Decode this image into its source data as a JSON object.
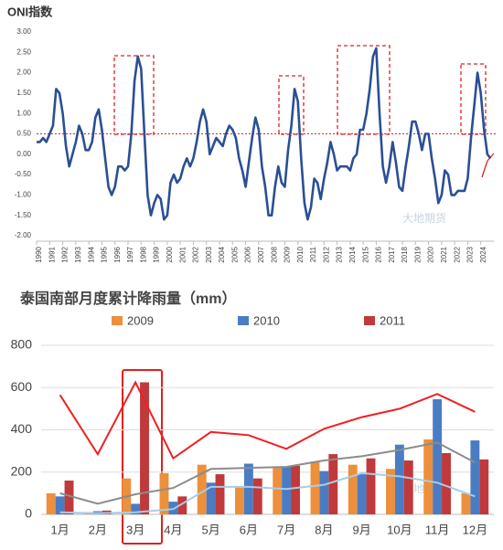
{
  "chart_data": [
    {
      "type": "line",
      "title": "ONI指数",
      "watermark": "大地期货",
      "x": [
        1990,
        1990.25,
        1990.5,
        1990.75,
        1991,
        1991.25,
        1991.5,
        1991.75,
        1992,
        1992.25,
        1992.5,
        1992.75,
        1993,
        1993.25,
        1993.5,
        1993.75,
        1994,
        1994.25,
        1994.5,
        1994.75,
        1995,
        1995.25,
        1995.5,
        1995.75,
        1996,
        1996.25,
        1996.5,
        1996.75,
        1997,
        1997.25,
        1997.5,
        1997.75,
        1998,
        1998.25,
        1998.5,
        1998.75,
        1999,
        1999.25,
        1999.5,
        1999.75,
        2000,
        2000.25,
        2000.5,
        2000.75,
        2001,
        2001.25,
        2001.5,
        2001.75,
        2002,
        2002.25,
        2002.5,
        2002.75,
        2003,
        2003.25,
        2003.5,
        2003.75,
        2004,
        2004.25,
        2004.5,
        2004.75,
        2005,
        2005.25,
        2005.5,
        2005.75,
        2006,
        2006.25,
        2006.5,
        2006.75,
        2007,
        2007.25,
        2007.5,
        2007.75,
        2008,
        2008.25,
        2008.5,
        2008.75,
        2009,
        2009.25,
        2009.5,
        2009.75,
        2010,
        2010.25,
        2010.5,
        2010.75,
        2011,
        2011.25,
        2011.5,
        2011.75,
        2012,
        2012.25,
        2012.5,
        2012.75,
        2013,
        2013.25,
        2013.5,
        2013.75,
        2014,
        2014.25,
        2014.5,
        2014.75,
        2015,
        2015.25,
        2015.5,
        2015.75,
        2016,
        2016.25,
        2016.5,
        2016.75,
        2017,
        2017.25,
        2017.5,
        2017.75,
        2018,
        2018.25,
        2018.5,
        2018.75,
        2019,
        2019.25,
        2019.5,
        2019.75,
        2020,
        2020.25,
        2020.5,
        2020.75,
        2021,
        2021.25,
        2021.5,
        2021.75,
        2022,
        2022.25,
        2022.5,
        2022.75,
        2023,
        2023.25,
        2023.5,
        2023.75,
        2024,
        2024.25,
        2024.5,
        2024.75
      ],
      "series": [
        {
          "color": "#2b4f95",
          "values": [
            0.3,
            0.3,
            0.4,
            0.3,
            0.5,
            0.7,
            1.6,
            1.5,
            1.0,
            0.2,
            -0.3,
            0.0,
            0.3,
            0.7,
            0.5,
            0.1,
            0.1,
            0.3,
            0.9,
            1.1,
            0.6,
            -0.1,
            -0.8,
            -1.0,
            -0.8,
            -0.3,
            -0.3,
            -0.4,
            -0.3,
            0.5,
            1.8,
            2.4,
            2.1,
            0.5,
            -1.0,
            -1.5,
            -1.2,
            -1.0,
            -1.1,
            -1.6,
            -1.5,
            -0.7,
            -0.5,
            -0.7,
            -0.6,
            -0.3,
            -0.1,
            -0.3,
            -0.1,
            0.3,
            0.8,
            1.1,
            0.8,
            0.0,
            0.2,
            0.4,
            0.3,
            0.2,
            0.5,
            0.7,
            0.6,
            0.4,
            -0.1,
            -0.4,
            -0.8,
            -0.2,
            0.4,
            0.9,
            0.6,
            -0.3,
            -0.8,
            -1.5,
            -1.5,
            -0.8,
            -0.3,
            -0.7,
            -0.8,
            0.1,
            0.7,
            1.6,
            1.3,
            -0.1,
            -1.2,
            -1.6,
            -1.3,
            -0.6,
            -0.7,
            -1.1,
            -0.6,
            -0.2,
            0.3,
            0.0,
            -0.4,
            -0.3,
            -0.3,
            -0.3,
            -0.4,
            -0.1,
            0.0,
            0.6,
            0.6,
            1.0,
            1.6,
            2.4,
            2.6,
            1.0,
            -0.3,
            -0.7,
            -0.3,
            0.3,
            -0.2,
            -0.8,
            -0.9,
            -0.3,
            0.2,
            0.8,
            0.8,
            0.5,
            0.1,
            0.5,
            0.5,
            -0.1,
            -0.6,
            -1.2,
            -1.0,
            -0.4,
            -0.5,
            -1.0,
            -1.0,
            -0.9,
            -0.9,
            -0.9,
            -0.6,
            0.4,
            1.2,
            2.0,
            1.5,
            0.6,
            0.0,
            -0.1
          ]
        }
      ],
      "threshold": 0.5,
      "threshold_color": "#e02020",
      "xlim": [
        1990,
        2025
      ],
      "xticks": [
        1990,
        1991,
        1992,
        1993,
        1994,
        1995,
        1996,
        1997,
        1998,
        1999,
        2000,
        2001,
        2002,
        2003,
        2004,
        2005,
        2006,
        2007,
        2008,
        2009,
        2010,
        2011,
        2012,
        2013,
        2014,
        2015,
        2016,
        2017,
        2018,
        2019,
        2020,
        2021,
        2022,
        2023,
        2024
      ],
      "ylim": [
        -2,
        3
      ],
      "yticks": [
        {
          "value": 3,
          "label": "3.00"
        },
        {
          "value": 2.5,
          "label": "2.50"
        },
        {
          "value": 2,
          "label": "2.00"
        },
        {
          "value": 1.5,
          "label": "1.50"
        },
        {
          "value": 1,
          "label": "1.00"
        },
        {
          "value": 0.5,
          "label": "0.50"
        },
        {
          "value": 0,
          "label": "0.00"
        },
        {
          "value": -0.5,
          "label": "-0.50"
        },
        {
          "value": -1,
          "label": "-1.00"
        },
        {
          "value": -1.5,
          "label": "-1.50"
        },
        {
          "value": -2,
          "label": "-2.00"
        }
      ],
      "grid": false
    },
    {
      "type": "bar",
      "title": "泰国南部月度累计降雨量（mm）",
      "watermark": "大地期货",
      "categories": [
        "1月",
        "2月",
        "3月",
        "4月",
        "5月",
        "6月",
        "7月",
        "8月",
        "9月",
        "10月",
        "11月",
        "12月"
      ],
      "series": [
        {
          "name": "2009",
          "color": "#ed8f3b",
          "values": [
            100,
            10,
            170,
            195,
            235,
            130,
            225,
            250,
            235,
            215,
            355,
            100
          ]
        },
        {
          "name": "2010",
          "color": "#4a7cc4",
          "values": [
            85,
            15,
            50,
            60,
            150,
            240,
            225,
            205,
            190,
            330,
            545,
            350
          ]
        },
        {
          "name": "2011",
          "color": "#c0393b",
          "values": [
            160,
            18,
            625,
            85,
            190,
            170,
            230,
            285,
            265,
            255,
            290,
            260
          ]
        },
        {
          "type": "line",
          "color": "#f02020",
          "values": [
            565,
            285,
            625,
            265,
            390,
            375,
            310,
            405,
            460,
            500,
            570,
            485
          ]
        },
        {
          "type": "line",
          "color": "#8c8c8c",
          "values": [
            100,
            50,
            95,
            125,
            215,
            220,
            225,
            255,
            275,
            305,
            340,
            245
          ]
        },
        {
          "type": "line",
          "color": "#a9cde6",
          "values": [
            10,
            5,
            10,
            25,
            130,
            130,
            120,
            140,
            195,
            180,
            150,
            85
          ]
        }
      ],
      "ylim": [
        0,
        800
      ],
      "yticks": [
        0,
        200,
        400,
        600,
        800
      ],
      "grid": true
    }
  ]
}
